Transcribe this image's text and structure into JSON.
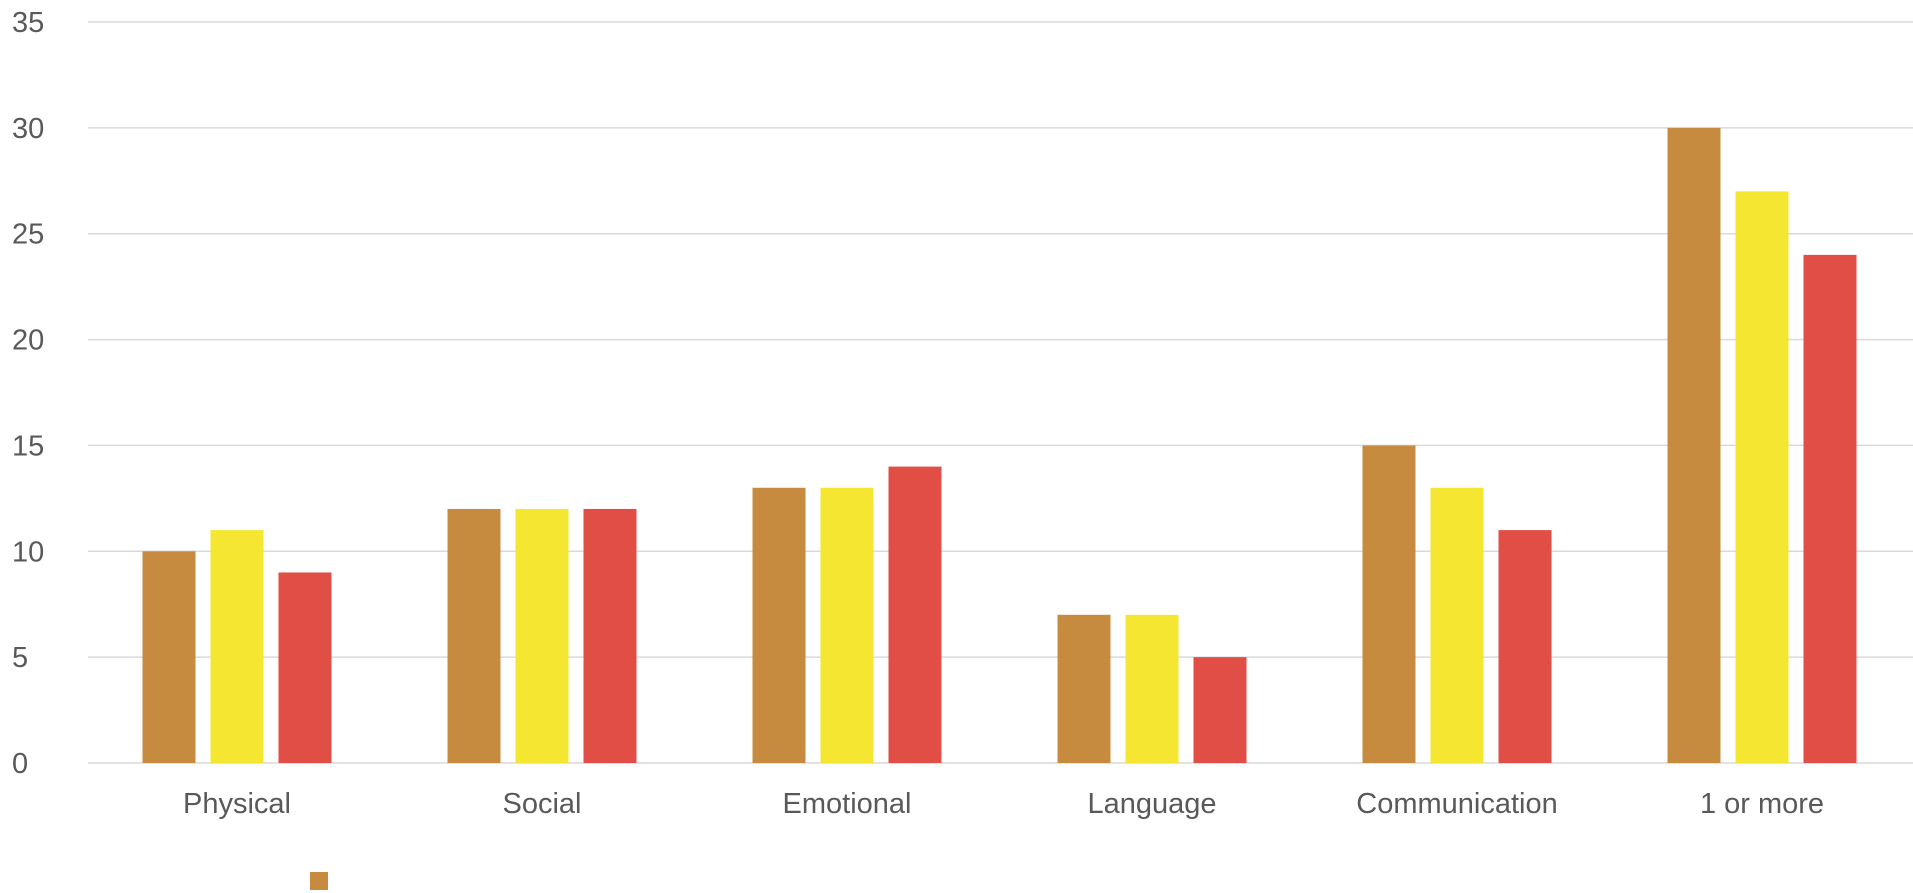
{
  "chart_data": {
    "type": "bar",
    "title": "",
    "xlabel": "",
    "ylabel": "",
    "categories": [
      "Physical",
      "Social",
      "Emotional",
      "Language",
      "Communication",
      "1 or more"
    ],
    "series": [
      {
        "name": "",
        "color": "#c78b40",
        "values": [
          10,
          12,
          13,
          7,
          15,
          30
        ]
      },
      {
        "name": "",
        "color": "#f4e631",
        "values": [
          11,
          12,
          13,
          7,
          13,
          27
        ]
      },
      {
        "name": "",
        "color": "#e04e45",
        "values": [
          9,
          12,
          14,
          5,
          11,
          24
        ]
      }
    ],
    "ylim": [
      0,
      35
    ],
    "yticks": [
      "0",
      "5",
      "10",
      "15",
      "20",
      "25",
      "30",
      "35"
    ],
    "grid": true,
    "legend": "bottom-left"
  }
}
